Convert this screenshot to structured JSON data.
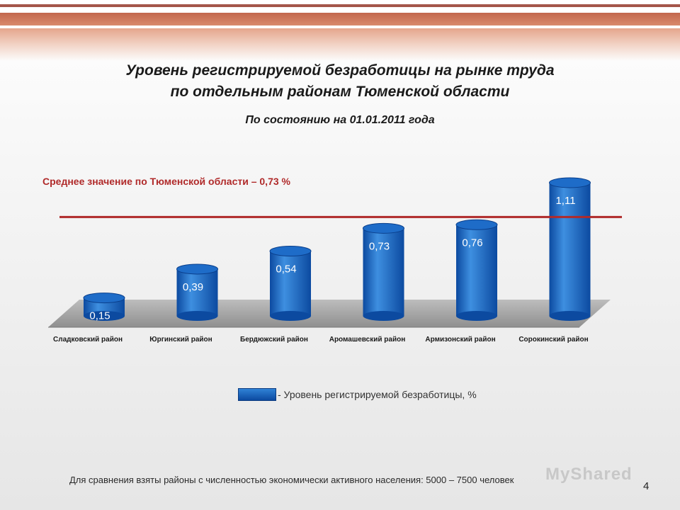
{
  "slide": {
    "title_line1": "Уровень регистрируемой безработицы  на рынке труда",
    "title_line2": "по отдельным районам Тюменской области",
    "subtitle": "По состоянию на 01.01.2011 года",
    "average_label": "Среднее значение по Тюменской области – 0,73 %",
    "legend_label": "- Уровень регистрируемой безработицы, %",
    "footnote": "Для сравнения взяты районы с численностью экономически активного населения: 5000 – 7500 человек",
    "slide_number": "4",
    "watermark": "MyShared"
  },
  "colors": {
    "bar_dark": "#0c4aa0",
    "bar_light": "#3e8fe0",
    "bar_top": "#1e6cc8",
    "average_line": "#b02a2a",
    "floor": "#a8a8a8"
  },
  "chart_data": {
    "type": "bar",
    "categories": [
      "Сладковский район",
      "Юргинский район",
      "Бердюжский район",
      "Аромашевский район",
      "Армизонский район",
      "Сорокинский район"
    ],
    "values": [
      0.15,
      0.39,
      0.54,
      0.73,
      0.76,
      1.11
    ],
    "value_labels": [
      "0,15",
      "0,39",
      "0,54",
      "0,73",
      "0,76",
      "1,11"
    ],
    "average": 0.73,
    "series": [
      {
        "name": "Уровень регистрируемой безработицы, %",
        "values": [
          0.15,
          0.39,
          0.54,
          0.73,
          0.76,
          1.11
        ]
      }
    ],
    "legend": "bottom-center",
    "grid": false
  }
}
